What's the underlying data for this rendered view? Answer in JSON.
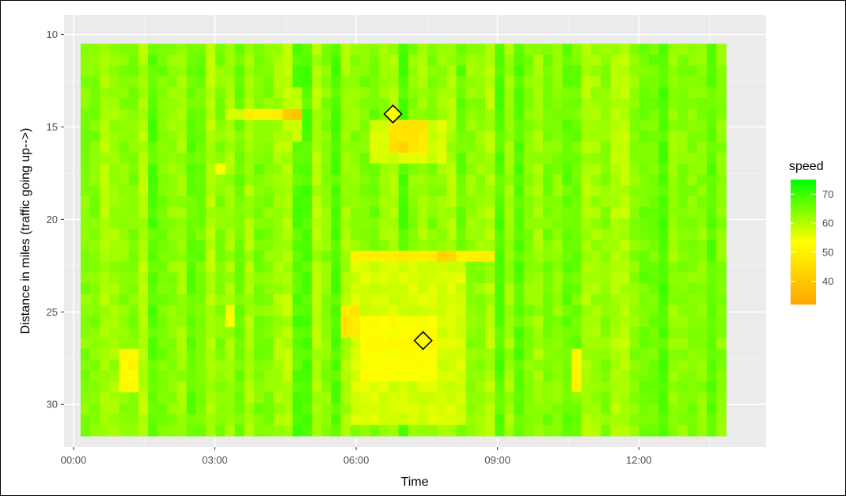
{
  "chart_data": {
    "type": "heatmap",
    "title": "",
    "xlabel": "Time",
    "ylabel": "Distance in miles (traffic going up-->)",
    "x_ticks": [
      "00:00",
      "03:00",
      "06:00",
      "09:00",
      "12:00"
    ],
    "y_ticks": [
      "10",
      "15",
      "20",
      "25",
      "30"
    ],
    "xlim_hours": [
      -0.2,
      14.7
    ],
    "ylim_miles": [
      10,
      32.3
    ],
    "x_range_hours": [
      0.15,
      13.85
    ],
    "y_range_miles": [
      10.5,
      31.7
    ],
    "n_time_bins": 67,
    "n_distance_bins": 36,
    "grid": true,
    "reversed_y": true,
    "baseline_speed": 64,
    "low_speed_regions": [
      {
        "t": [
          3.65,
          4.85
        ],
        "d": [
          14.2,
          14.8
        ],
        "speed": 50
      },
      {
        "t": [
          4.45,
          4.85
        ],
        "d": [
          14.2,
          14.8
        ],
        "speed": 40
      },
      {
        "t": [
          3.25,
          3.65
        ],
        "d": [
          14.2,
          14.8
        ],
        "speed": 58
      },
      {
        "t": [
          4.65,
          4.85
        ],
        "d": [
          12.8,
          16.0
        ],
        "speed": 58
      },
      {
        "t": [
          3.05,
          3.25
        ],
        "d": [
          16.9,
          17.5
        ],
        "speed": 52
      },
      {
        "t": [
          6.65,
          7.45
        ],
        "d": [
          14.8,
          16.5
        ],
        "speed": 47
      },
      {
        "t": [
          6.85,
          7.05
        ],
        "d": [
          15.8,
          16.5
        ],
        "speed": 42
      },
      {
        "t": [
          6.25,
          7.85
        ],
        "d": [
          14.8,
          17.0
        ],
        "speed": 57
      },
      {
        "t": [
          5.95,
          8.85
        ],
        "d": [
          21.7,
          22.3
        ],
        "speed": 50
      },
      {
        "t": [
          7.65,
          8.05
        ],
        "d": [
          21.7,
          22.3
        ],
        "speed": 43
      },
      {
        "t": [
          5.95,
          8.25
        ],
        "d": [
          22.3,
          31.0
        ],
        "speed": 57
      },
      {
        "t": [
          5.75,
          6.05
        ],
        "d": [
          24.5,
          26.5
        ],
        "speed": 48
      },
      {
        "t": [
          6.05,
          7.65
        ],
        "d": [
          25.0,
          29.0
        ],
        "speed": 53
      },
      {
        "t": [
          6.65,
          7.05
        ],
        "d": [
          26.2,
          26.6
        ],
        "speed": 49
      },
      {
        "t": [
          0.95,
          1.45
        ],
        "d": [
          26.7,
          29.2
        ],
        "speed": 52
      },
      {
        "t": [
          10.65,
          10.85
        ],
        "d": [
          26.7,
          29.2
        ],
        "speed": 51
      },
      {
        "t": [
          3.15,
          3.35
        ],
        "d": [
          24.5,
          26.0
        ],
        "speed": 54
      }
    ],
    "markers": [
      {
        "shape": "diamond",
        "time_hours": 6.78,
        "distance_miles": 14.3
      },
      {
        "shape": "diamond",
        "time_hours": 7.42,
        "distance_miles": 26.55
      }
    ],
    "legend": {
      "title": "speed",
      "position": "right",
      "labels": [
        "70",
        "60",
        "50",
        "40"
      ],
      "values": [
        70,
        60,
        50,
        40
      ],
      "min": 32,
      "max": 75,
      "colors": {
        "high": "#00ff00",
        "mid": "#ffff00",
        "low": "#ffa500"
      }
    }
  },
  "theme": {
    "panel_bg": "#ebebeb",
    "grid_major": "#ffffff",
    "grid_minor": "#f5f5f5"
  }
}
